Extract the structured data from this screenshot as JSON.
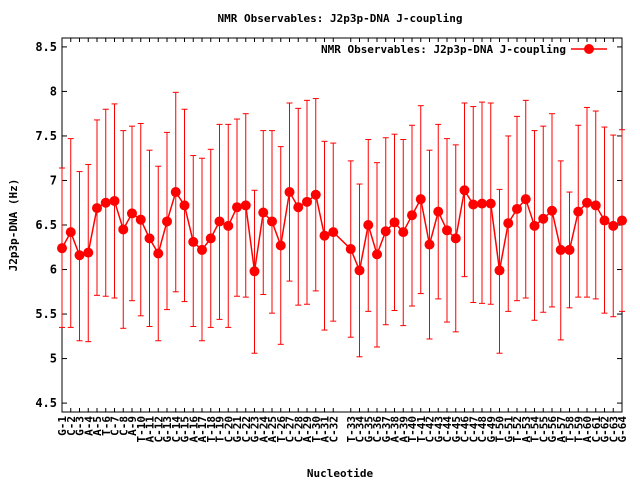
{
  "chart_data": {
    "type": "line",
    "title": "NMR Observables: J2p3p-DNA J-coupling",
    "xlabel": "Nucleotide",
    "ylabel": "J2p3p-DNA (Hz)",
    "ylim": [
      4.4,
      8.6
    ],
    "yticks": [
      "4.5",
      "5",
      "5.5",
      "6",
      "6.5",
      "7",
      "7.5",
      "8",
      "8.5"
    ],
    "legend_position": "top-right",
    "grid": false,
    "series": [
      {
        "name": "NMR Observables: J2p3p-DNA J-coupling",
        "color": "#ff0000",
        "error_bars": true,
        "points": [
          {
            "x": 1,
            "label": "G-1",
            "y": 6.24,
            "lo": 5.35,
            "hi": 7.14
          },
          {
            "x": 2,
            "label": "C-2",
            "y": 6.42,
            "lo": 5.35,
            "hi": 7.47
          },
          {
            "x": 3,
            "label": "G-3",
            "y": 6.16,
            "lo": 5.2,
            "hi": 7.1
          },
          {
            "x": 4,
            "label": "A-4",
            "y": 6.19,
            "lo": 5.19,
            "hi": 7.18
          },
          {
            "x": 5,
            "label": "A-5",
            "y": 6.69,
            "lo": 5.71,
            "hi": 7.68
          },
          {
            "x": 6,
            "label": "T-6",
            "y": 6.75,
            "lo": 5.7,
            "hi": 7.8
          },
          {
            "x": 7,
            "label": "C-7",
            "y": 6.77,
            "lo": 5.68,
            "hi": 7.86
          },
          {
            "x": 8,
            "label": "C-8",
            "y": 6.45,
            "lo": 5.34,
            "hi": 7.56
          },
          {
            "x": 9,
            "label": "A-9",
            "y": 6.63,
            "lo": 5.65,
            "hi": 7.61
          },
          {
            "x": 10,
            "label": "T-10",
            "y": 6.56,
            "lo": 5.48,
            "hi": 7.64
          },
          {
            "x": 11,
            "label": "A-11",
            "y": 6.35,
            "lo": 5.36,
            "hi": 7.34
          },
          {
            "x": 12,
            "label": "C-12",
            "y": 6.18,
            "lo": 5.2,
            "hi": 7.16
          },
          {
            "x": 13,
            "label": "G-13",
            "y": 6.54,
            "lo": 5.55,
            "hi": 7.54
          },
          {
            "x": 14,
            "label": "C-14",
            "y": 6.87,
            "lo": 5.75,
            "hi": 7.99
          },
          {
            "x": 15,
            "label": "G-15",
            "y": 6.72,
            "lo": 5.64,
            "hi": 7.8
          },
          {
            "x": 16,
            "label": "A-16",
            "y": 6.31,
            "lo": 5.36,
            "hi": 7.28
          },
          {
            "x": 17,
            "label": "A-17",
            "y": 6.22,
            "lo": 5.2,
            "hi": 7.25
          },
          {
            "x": 18,
            "label": "T-18",
            "y": 6.35,
            "lo": 5.35,
            "hi": 7.35
          },
          {
            "x": 19,
            "label": "T-19",
            "y": 6.54,
            "lo": 5.44,
            "hi": 7.63
          },
          {
            "x": 20,
            "label": "C-20",
            "y": 6.49,
            "lo": 5.35,
            "hi": 7.63
          },
          {
            "x": 21,
            "label": "G-21",
            "y": 6.7,
            "lo": 5.7,
            "hi": 7.69
          },
          {
            "x": 22,
            "label": "C-22",
            "y": 6.72,
            "lo": 5.69,
            "hi": 7.75
          },
          {
            "x": 23,
            "label": "G-23",
            "y": 5.98,
            "lo": 5.06,
            "hi": 6.89
          },
          {
            "x": 24,
            "label": "A-24",
            "y": 6.64,
            "lo": 5.72,
            "hi": 7.56
          },
          {
            "x": 25,
            "label": "A-25",
            "y": 6.54,
            "lo": 5.51,
            "hi": 7.56
          },
          {
            "x": 26,
            "label": "T-26",
            "y": 6.27,
            "lo": 5.16,
            "hi": 7.38
          },
          {
            "x": 27,
            "label": "C-27",
            "y": 6.87,
            "lo": 5.87,
            "hi": 7.87
          },
          {
            "x": 28,
            "label": "C-28",
            "y": 6.7,
            "lo": 5.6,
            "hi": 7.81
          },
          {
            "x": 29,
            "label": "A-29",
            "y": 6.76,
            "lo": 5.61,
            "hi": 7.9
          },
          {
            "x": 30,
            "label": "T-30",
            "y": 6.84,
            "lo": 5.76,
            "hi": 7.92
          },
          {
            "x": 31,
            "label": "A-31",
            "y": 6.38,
            "lo": 5.32,
            "hi": 7.44
          },
          {
            "x": 32,
            "label": "C-32",
            "y": 6.42,
            "lo": 5.42,
            "hi": 7.42
          },
          {
            "x": 34,
            "label": "T-33",
            "y": 6.23,
            "lo": 5.24,
            "hi": 7.22
          },
          {
            "x": 35,
            "label": "C-34",
            "y": 5.99,
            "lo": 5.02,
            "hi": 6.96
          },
          {
            "x": 36,
            "label": "G-35",
            "y": 6.5,
            "lo": 5.53,
            "hi": 7.46
          },
          {
            "x": 37,
            "label": "C-36",
            "y": 6.17,
            "lo": 5.13,
            "hi": 7.2
          },
          {
            "x": 38,
            "label": "G-37",
            "y": 6.43,
            "lo": 5.38,
            "hi": 7.48
          },
          {
            "x": 39,
            "label": "A-38",
            "y": 6.53,
            "lo": 5.54,
            "hi": 7.52
          },
          {
            "x": 40,
            "label": "A-39",
            "y": 6.42,
            "lo": 5.37,
            "hi": 7.46
          },
          {
            "x": 41,
            "label": "T-40",
            "y": 6.61,
            "lo": 5.59,
            "hi": 7.62
          },
          {
            "x": 42,
            "label": "T-41",
            "y": 6.79,
            "lo": 5.73,
            "hi": 7.84
          },
          {
            "x": 43,
            "label": "C-42",
            "y": 6.28,
            "lo": 5.22,
            "hi": 7.34
          },
          {
            "x": 44,
            "label": "G-43",
            "y": 6.65,
            "lo": 5.67,
            "hi": 7.63
          },
          {
            "x": 45,
            "label": "C-44",
            "y": 6.44,
            "lo": 5.41,
            "hi": 7.47
          },
          {
            "x": 46,
            "label": "G-45",
            "y": 6.35,
            "lo": 5.3,
            "hi": 7.4
          },
          {
            "x": 47,
            "label": "C-46",
            "y": 6.89,
            "lo": 5.92,
            "hi": 7.87
          },
          {
            "x": 48,
            "label": "C-47",
            "y": 6.73,
            "lo": 5.63,
            "hi": 7.83
          },
          {
            "x": 49,
            "label": "C-48",
            "y": 6.74,
            "lo": 5.62,
            "hi": 7.88
          },
          {
            "x": 50,
            "label": "G-49",
            "y": 6.74,
            "lo": 5.61,
            "hi": 7.87
          },
          {
            "x": 51,
            "label": "T-50",
            "y": 5.99,
            "lo": 5.06,
            "hi": 6.9
          },
          {
            "x": 52,
            "label": "G-51",
            "y": 6.52,
            "lo": 5.53,
            "hi": 7.5
          },
          {
            "x": 53,
            "label": "T-52",
            "y": 6.68,
            "lo": 5.65,
            "hi": 7.72
          },
          {
            "x": 54,
            "label": "A-53",
            "y": 6.79,
            "lo": 5.68,
            "hi": 7.9
          },
          {
            "x": 55,
            "label": "T-54",
            "y": 6.49,
            "lo": 5.43,
            "hi": 7.56
          },
          {
            "x": 56,
            "label": "C-55",
            "y": 6.57,
            "lo": 5.52,
            "hi": 7.61
          },
          {
            "x": 57,
            "label": "G-56",
            "y": 6.66,
            "lo": 5.58,
            "hi": 7.75
          },
          {
            "x": 58,
            "label": "A-57",
            "y": 6.22,
            "lo": 5.21,
            "hi": 7.22
          },
          {
            "x": 59,
            "label": "T-58",
            "y": 6.22,
            "lo": 5.57,
            "hi": 6.87
          },
          {
            "x": 60,
            "label": "T-59",
            "y": 6.65,
            "lo": 5.69,
            "hi": 7.62
          },
          {
            "x": 61,
            "label": "A-60",
            "y": 6.75,
            "lo": 5.69,
            "hi": 7.82
          },
          {
            "x": 62,
            "label": "C-61",
            "y": 6.72,
            "lo": 5.67,
            "hi": 7.78
          },
          {
            "x": 63,
            "label": "G-62",
            "y": 6.55,
            "lo": 5.51,
            "hi": 7.6
          },
          {
            "x": 64,
            "label": "C-63",
            "y": 6.49,
            "lo": 5.47,
            "hi": 7.51
          },
          {
            "x": 65,
            "label": "G-64",
            "y": 6.55,
            "lo": 5.53,
            "hi": 7.57
          }
        ]
      }
    ]
  }
}
